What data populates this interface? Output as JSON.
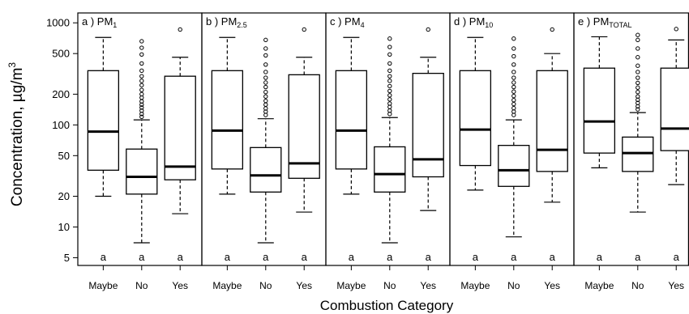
{
  "chart_data": {
    "type": "box",
    "ylabel": "Concentration, µg/m",
    "ylabel_superscript": "3",
    "xlabel": "Combustion Category",
    "y_scale": "log",
    "ylim": [
      4.2,
      1250
    ],
    "yticks": [
      5,
      10,
      20,
      50,
      100,
      200,
      500,
      1000
    ],
    "ytick_labels": [
      "5",
      "10",
      "20",
      "50",
      "100",
      "200",
      "500",
      "1000"
    ],
    "categories": [
      "Maybe",
      "No",
      "Yes"
    ],
    "panels": [
      {
        "title_prefix": "a ) PM",
        "title_sub": "1",
        "groups": [
          {
            "category": "Maybe",
            "min": 20,
            "q1": 36,
            "median": 86,
            "q3": 340,
            "max": 720,
            "letter": "a",
            "outliers": []
          },
          {
            "category": "No",
            "min": 7,
            "q1": 21,
            "median": 31,
            "q3": 58,
            "max": 112,
            "letter": "a",
            "outliers": [
              120,
              128,
              138,
              148,
              158,
              170,
              185,
              200,
              220,
              245,
              270,
              300,
              340,
              400,
              490,
              570,
              660
            ]
          },
          {
            "category": "Yes",
            "min": 13.5,
            "q1": 29,
            "median": 39,
            "q3": 300,
            "max": 460,
            "letter": "a",
            "outliers": [
              860
            ]
          }
        ]
      },
      {
        "title_prefix": "b ) PM",
        "title_sub": "2.5",
        "groups": [
          {
            "category": "Maybe",
            "min": 21,
            "q1": 37,
            "median": 88,
            "q3": 340,
            "max": 720,
            "letter": "a",
            "outliers": []
          },
          {
            "category": "No",
            "min": 7,
            "q1": 22,
            "median": 32,
            "q3": 60,
            "max": 115,
            "letter": "a",
            "outliers": [
              125,
              135,
              145,
              158,
              172,
              190,
              210,
              235,
              260,
              290,
              330,
              390,
              480,
              560,
              680
            ]
          },
          {
            "category": "Yes",
            "min": 14,
            "q1": 30,
            "median": 42,
            "q3": 310,
            "max": 460,
            "letter": "a",
            "outliers": [
              860
            ]
          }
        ]
      },
      {
        "title_prefix": "c ) PM",
        "title_sub": "4",
        "groups": [
          {
            "category": "Maybe",
            "min": 21,
            "q1": 37,
            "median": 88,
            "q3": 340,
            "max": 720,
            "letter": "a",
            "outliers": []
          },
          {
            "category": "No",
            "min": 7,
            "q1": 22,
            "median": 33,
            "q3": 61,
            "max": 118,
            "letter": "a",
            "outliers": [
              128,
              138,
              150,
              162,
              178,
              195,
              215,
              240,
              270,
              300,
              340,
              400,
              490,
              580,
              700
            ]
          },
          {
            "category": "Yes",
            "min": 14.5,
            "q1": 31,
            "median": 46,
            "q3": 320,
            "max": 460,
            "letter": "a",
            "outliers": [
              860
            ]
          }
        ]
      },
      {
        "title_prefix": "d ) PM",
        "title_sub": "10",
        "groups": [
          {
            "category": "Maybe",
            "min": 23,
            "q1": 40,
            "median": 90,
            "q3": 340,
            "max": 720,
            "letter": "a",
            "outliers": []
          },
          {
            "category": "No",
            "min": 8,
            "q1": 25,
            "median": 36,
            "q3": 63,
            "max": 112,
            "letter": "a",
            "outliers": [
              125,
              135,
              146,
              160,
              175,
              192,
              212,
              235,
              260,
              290,
              330,
              390,
              470,
              560,
              700
            ]
          },
          {
            "category": "Yes",
            "min": 17.5,
            "q1": 35,
            "median": 57,
            "q3": 340,
            "max": 500,
            "letter": "a",
            "outliers": [
              860
            ]
          }
        ]
      },
      {
        "title_prefix": "e ) PM",
        "title_sub": "TOTAL",
        "groups": [
          {
            "category": "Maybe",
            "min": 38,
            "q1": 53,
            "median": 108,
            "q3": 360,
            "max": 730,
            "letter": "a",
            "outliers": []
          },
          {
            "category": "No",
            "min": 14,
            "q1": 35,
            "median": 53,
            "q3": 76,
            "max": 132,
            "letter": "a",
            "outliers": [
              142,
              152,
              164,
              176,
              190,
              210,
              232,
              258,
              290,
              330,
              380,
              460,
              560,
              680,
              760
            ]
          },
          {
            "category": "Yes",
            "min": 26,
            "q1": 56,
            "median": 92,
            "q3": 360,
            "max": 680,
            "letter": "a",
            "outliers": [
              870
            ]
          }
        ]
      }
    ]
  }
}
